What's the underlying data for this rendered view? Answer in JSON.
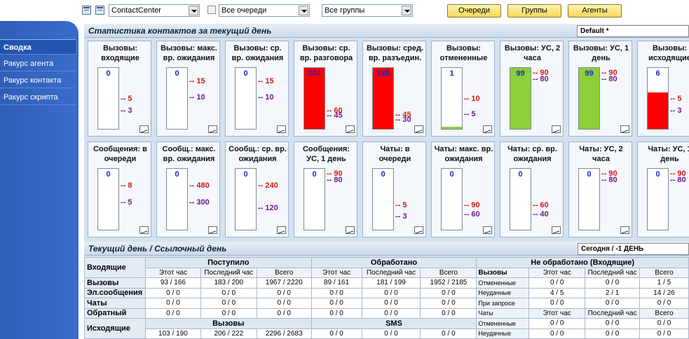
{
  "toolbar": {
    "center_select": "ContactCenter",
    "queues_select": "Все очереди",
    "groups_select": "Все группы",
    "btn_queues": "Очереди",
    "btn_groups": "Группы",
    "btn_agents": "Агенты"
  },
  "nav": {
    "items": [
      {
        "label": "Сводка",
        "active": true
      },
      {
        "label": "Ракурс агента",
        "active": false
      },
      {
        "label": "Ракурс контакта",
        "active": false
      },
      {
        "label": "Ракурс скрипта",
        "active": false
      }
    ]
  },
  "stats": {
    "title": "Статистика контактов за текущий день",
    "preset": "Default *",
    "row1": [
      {
        "title": "Вызовы: входящие",
        "value": "0",
        "fill": 0,
        "fill_color": "#ffffff",
        "th1": "5",
        "th1_level": 0.5,
        "th2": "3",
        "th2_level": 0.3
      },
      {
        "title": "Вызовы: макс. вр. ожидания",
        "value": "0",
        "fill": 0,
        "fill_color": "#ffffff",
        "th1": "15",
        "th1_level": 0.78,
        "th2": "10",
        "th2_level": 0.52
      },
      {
        "title": "Вызовы: ср. вр. ожидания",
        "value": "0",
        "fill": 0,
        "fill_color": "#ffffff",
        "th1": "15",
        "th1_level": 0.78,
        "th2": "10",
        "th2_level": 0.52
      },
      {
        "title": "Вызовы: ср. вр. разговора",
        "value": "204",
        "fill": 1,
        "fill_color": "#ff0000",
        "th1": "60",
        "th1_level": 0.3,
        "th2": "45",
        "th2_level": 0.22
      },
      {
        "title": "Вызовы: сред. вр. разъедин.",
        "value": "188",
        "fill": 1,
        "fill_color": "#ff0000",
        "th1": "45",
        "th1_level": 0.24,
        "th2": "30",
        "th2_level": 0.16
      },
      {
        "title": "Вызовы: отмененные",
        "value": "1",
        "fill": 0.04,
        "fill_color": "#8ccf3a",
        "th1": "10",
        "th1_level": 0.5,
        "th2": "5",
        "th2_level": 0.25
      },
      {
        "title": "Вызовы: УС, 2 часа",
        "value": "99",
        "fill": 1,
        "fill_color": "#8ccf3a",
        "th1": "90",
        "th1_level": 0.91,
        "th2": "80",
        "th2_level": 0.81
      },
      {
        "title": "Вызовы: УС, 1 день",
        "value": "99",
        "fill": 1,
        "fill_color": "#8ccf3a",
        "th1": "90",
        "th1_level": 0.91,
        "th2": "80",
        "th2_level": 0.81
      },
      {
        "title": "Вызовы: исходящие",
        "value": "6",
        "fill": 0.6,
        "fill_color": "#ff0000",
        "th1": "5",
        "th1_level": 0.5,
        "th2": "3",
        "th2_level": 0.3
      }
    ],
    "row2": [
      {
        "title": "Сообщения: в очереди",
        "value": "0",
        "fill": 0,
        "fill_color": "#ffffff",
        "th1": "8",
        "th1_level": 0.72,
        "th2": "5",
        "th2_level": 0.45
      },
      {
        "title": "Сообщ.: макс. вр. ожидания",
        "value": "0",
        "fill": 0,
        "fill_color": "#ffffff",
        "th1": "480",
        "th1_level": 0.72,
        "th2": "300",
        "th2_level": 0.45
      },
      {
        "title": "Сообщ.: ср. вр. ожидания",
        "value": "0",
        "fill": 0,
        "fill_color": "#ffffff",
        "th1": "240",
        "th1_level": 0.72,
        "th2": "120",
        "th2_level": 0.36
      },
      {
        "title": "Сообщения: УС, 1 день",
        "value": "0",
        "fill": 0,
        "fill_color": "#ffffff",
        "th1": "90",
        "th1_level": 0.91,
        "th2": "80",
        "th2_level": 0.81
      },
      {
        "title": "Чаты: в очереди",
        "value": "0",
        "fill": 0,
        "fill_color": "#ffffff",
        "th1": "5",
        "th1_level": 0.4,
        "th2": "3",
        "th2_level": 0.22
      },
      {
        "title": "Чаты: макс. вр. ожидания",
        "value": "0",
        "fill": 0,
        "fill_color": "#ffffff",
        "th1": "90",
        "th1_level": 0.4,
        "th2": "60",
        "th2_level": 0.26
      },
      {
        "title": "Чаты: ср. вр. ожидания",
        "value": "0",
        "fill": 0,
        "fill_color": "#ffffff",
        "th1": "60",
        "th1_level": 0.4,
        "th2": "40",
        "th2_level": 0.26
      },
      {
        "title": "Чаты: УС, 2 часа",
        "value": "0",
        "fill": 0,
        "fill_color": "#ffffff",
        "th1": "90",
        "th1_level": 0.91,
        "th2": "80",
        "th2_level": 0.81
      },
      {
        "title": "Чаты: УС, 1 день",
        "value": "0",
        "fill": 0,
        "fill_color": "#ffffff",
        "th1": "90",
        "th1_level": 0.91,
        "th2": "80",
        "th2_level": 0.81
      }
    ]
  },
  "day": {
    "title": "Текущий день / Ссылочный день",
    "period": "Сегодня / -1 ДЕНЬ",
    "h_incoming": "Входящие",
    "h_received": "Поступило",
    "h_handled": "Обработано",
    "h_unhandled": "Не обработано (Входящие)",
    "c_hour": "Этот час",
    "c_last_hour": "Последний час",
    "c_total": "Всего",
    "c_calls": "Вызовы",
    "rows": [
      {
        "label": "Вызовы",
        "r": [
          "93 / 166",
          "183 / 200",
          "1967 / 2220"
        ],
        "h": [
          "89 / 161",
          "181 / 199",
          "1952 / 2185"
        ],
        "sub": "Отмененные",
        "u": [
          "0 / 0",
          "0 / 0",
          "1 / 5"
        ]
      },
      {
        "label": "Эл.сообщения",
        "r": [
          "0 / 0",
          "0 / 0",
          "0 / 0"
        ],
        "h": [
          "0 / 0",
          "0 / 0",
          "0 / 0"
        ],
        "sub": "Неудачные",
        "u": [
          "4 / 5",
          "2 / 1",
          "14 / 26"
        ]
      },
      {
        "label": "Чаты",
        "r": [
          "0 / 0",
          "0 / 0",
          "0 / 0"
        ],
        "h": [
          "0 / 0",
          "0 / 0",
          "0 / 0"
        ],
        "sub": "При запросе",
        "u": [
          "0 / 0",
          "0 / 0",
          "0 / 0"
        ]
      },
      {
        "label": "Обратный",
        "r": [
          "0 / 0",
          "0 / 0",
          "0 / 0"
        ],
        "h": [
          "0 / 0",
          "0 / 0",
          "0 / 0"
        ],
        "sub": "Чаты",
        "u": [
          "Этот час",
          "Последний час",
          "Всего"
        ]
      }
    ],
    "outgoing": {
      "label": "Исходящие",
      "h_calls": "Вызовы",
      "h_sms": "SMS",
      "calls": [
        "103 / 190",
        "206 / 222",
        "2296 / 2683"
      ],
      "sms": [
        "0 / 0",
        "0 / 0",
        "0 / 0"
      ],
      "sub1": "Отмененные",
      "u1": [
        "0 / 0",
        "0 / 0",
        "0 / 0"
      ],
      "sub2": "Неудачные",
      "u2": [
        "0 / 0",
        "0 / 0",
        "0 / 0"
      ]
    }
  }
}
